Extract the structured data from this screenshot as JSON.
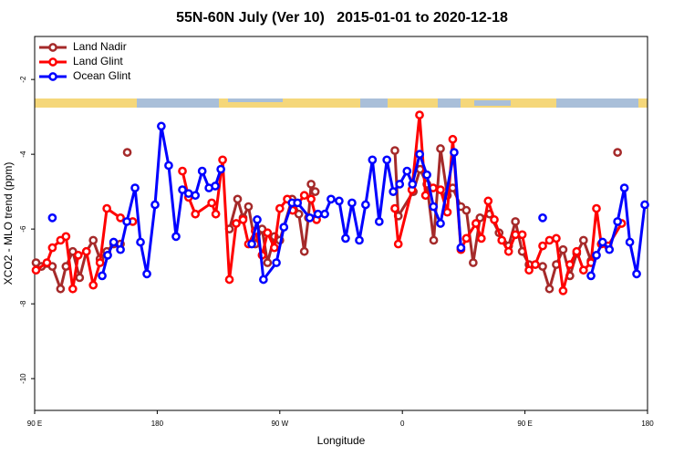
{
  "chart_data": {
    "type": "line",
    "title": "55N-60N July (Ver 10)   2015-01-01 to 2020-12-18",
    "x_label": "Longitude",
    "y_label": "XCO2 - MLO trend (ppm)",
    "xlim": [
      90,
      540
    ],
    "ylim": [
      -10.85,
      -0.85
    ],
    "xticks": [
      {
        "value": 90,
        "label": "90 E"
      },
      180,
      {
        "value": 270,
        "label": "90 W"
      },
      {
        "value": 360,
        "label": "0"
      },
      {
        "value": 450,
        "label": "90 E"
      },
      {
        "value": 540,
        "label": "180"
      }
    ],
    "yticks": [
      -2,
      -4,
      -6,
      -8,
      -10
    ],
    "grid": false,
    "legend": "upper-left",
    "series": [
      {
        "name": "Land Nadir",
        "color": "#a52a2a",
        "x": [
          91,
          95,
          103,
          109,
          113,
          118,
          123,
          128,
          133,
          138,
          143,
          148,
          153,
          null,
          158,
          null,
          233,
          239,
          243,
          247,
          252,
          257,
          261,
          266,
          270,
          279,
          284,
          288,
          291,
          293,
          296,
          null,
          354.5,
          357,
          368,
          373,
          378,
          383,
          388,
          393,
          397,
          403,
          407,
          412,
          417,
          424,
          431,
          438,
          443,
          448,
          453,
          null,
          463,
          468,
          473,
          478,
          483,
          488,
          493,
          498.5,
          null,
          518
        ],
        "values": [
          -6.9,
          -7.0,
          -7.0,
          -7.6,
          -7.0,
          -6.6,
          -7.3,
          -6.6,
          -6.3,
          -6.8,
          -6.6,
          -6.4,
          -6.4,
          null,
          -3.95,
          null,
          -6.0,
          -5.2,
          -5.7,
          -5.4,
          -6.4,
          -6.0,
          -6.9,
          -6.2,
          -6.3,
          -5.2,
          -5.6,
          -6.6,
          -5.7,
          -4.8,
          -5.0,
          null,
          -3.9,
          -5.65,
          -5.0,
          -4.4,
          -4.8,
          -6.3,
          -3.85,
          -5.1,
          -4.9,
          -5.4,
          -5.5,
          -6.9,
          -5.7,
          -5.6,
          -6.1,
          -6.45,
          -5.8,
          -6.6,
          -6.95,
          null,
          -7.0,
          -7.6,
          -6.95,
          -6.55,
          -7.25,
          -6.65,
          -6.3,
          -6.85,
          null,
          -3.95
        ]
      },
      {
        "name": "Land Glint",
        "color": "#ff0000",
        "x": [
          91,
          99,
          103,
          109,
          113,
          118,
          122,
          128,
          133,
          138,
          143,
          153,
          162,
          null,
          198.5,
          203,
          208,
          220,
          223,
          228,
          233,
          238,
          243,
          247,
          252,
          257,
          261,
          266,
          270,
          275.5,
          279.5,
          288,
          293,
          297,
          null,
          354.5,
          357,
          367,
          372.6,
          377,
          382.6,
          388,
          393,
          397,
          403,
          407,
          414,
          418,
          423,
          427.5,
          433,
          438,
          443,
          448,
          453,
          457.6,
          463,
          468,
          473,
          478,
          483,
          488,
          493,
          498.5,
          502.5,
          506,
          511,
          521
        ],
        "values": [
          -7.1,
          -6.9,
          -6.5,
          -6.3,
          -6.2,
          -7.6,
          -6.7,
          -6.6,
          -7.5,
          -6.9,
          -5.45,
          -5.7,
          -5.8,
          null,
          -4.45,
          -5.15,
          -5.6,
          -5.3,
          -5.6,
          -4.15,
          -7.35,
          -5.85,
          -5.75,
          -6.4,
          -6.05,
          -6.7,
          -6.1,
          -6.5,
          -5.45,
          -5.2,
          -5.5,
          -5.1,
          -5.2,
          -5.75,
          null,
          -5.45,
          -6.4,
          -4.95,
          -2.95,
          -5.1,
          -4.9,
          -4.95,
          -5.55,
          -3.6,
          -6.55,
          -6.25,
          -5.85,
          -6.25,
          -5.25,
          -5.75,
          -6.3,
          -6.6,
          -6.15,
          -6.15,
          -7.1,
          -6.95,
          -6.45,
          -6.3,
          -6.25,
          -7.65,
          -6.95,
          -6.6,
          -7.1,
          -6.9,
          -5.45,
          -6.4,
          -6.45,
          -5.85
        ]
      },
      {
        "name": "Ocean Glint",
        "color": "#0000ff",
        "x": [
          103,
          null,
          139.6,
          143.6,
          148,
          153,
          157.7,
          163.7,
          167.7,
          172.4,
          178.4,
          183,
          188.4,
          193.8,
          198.5,
          203,
          208,
          213,
          218,
          222.6,
          226.7,
          null,
          249.4,
          253.4,
          258,
          267.5,
          273,
          279,
          283,
          292,
          298,
          303,
          307.6,
          313.6,
          318.3,
          323,
          328.4,
          333,
          338,
          343,
          348.6,
          353.3,
          358,
          363.4,
          367.4,
          372.7,
          378,
          382.8,
          388,
          398,
          403,
          null,
          463,
          null,
          498.5,
          502.5,
          507,
          512,
          518,
          523,
          527,
          532,
          538
        ],
        "values": [
          -5.7,
          null,
          -7.25,
          -6.7,
          -6.35,
          -6.55,
          -5.8,
          -4.9,
          -6.35,
          -7.2,
          -5.35,
          -3.25,
          -4.3,
          -6.2,
          -4.95,
          -5.05,
          -5.1,
          -4.45,
          -4.9,
          -4.85,
          -4.4,
          null,
          -6.4,
          -5.75,
          -7.35,
          -6.9,
          -5.95,
          -5.3,
          -5.3,
          -5.7,
          -5.6,
          -5.6,
          -5.2,
          -5.25,
          -6.25,
          -5.3,
          -6.3,
          -5.35,
          -4.15,
          -5.8,
          -4.15,
          -5.0,
          -4.8,
          -4.45,
          -4.8,
          -4.0,
          -4.55,
          -5.4,
          -5.85,
          -3.95,
          -6.5,
          null,
          -5.7,
          null,
          -7.25,
          -6.7,
          -6.35,
          -6.55,
          -5.8,
          -4.9,
          -6.35,
          -7.2,
          -5.35
        ]
      }
    ]
  }
}
